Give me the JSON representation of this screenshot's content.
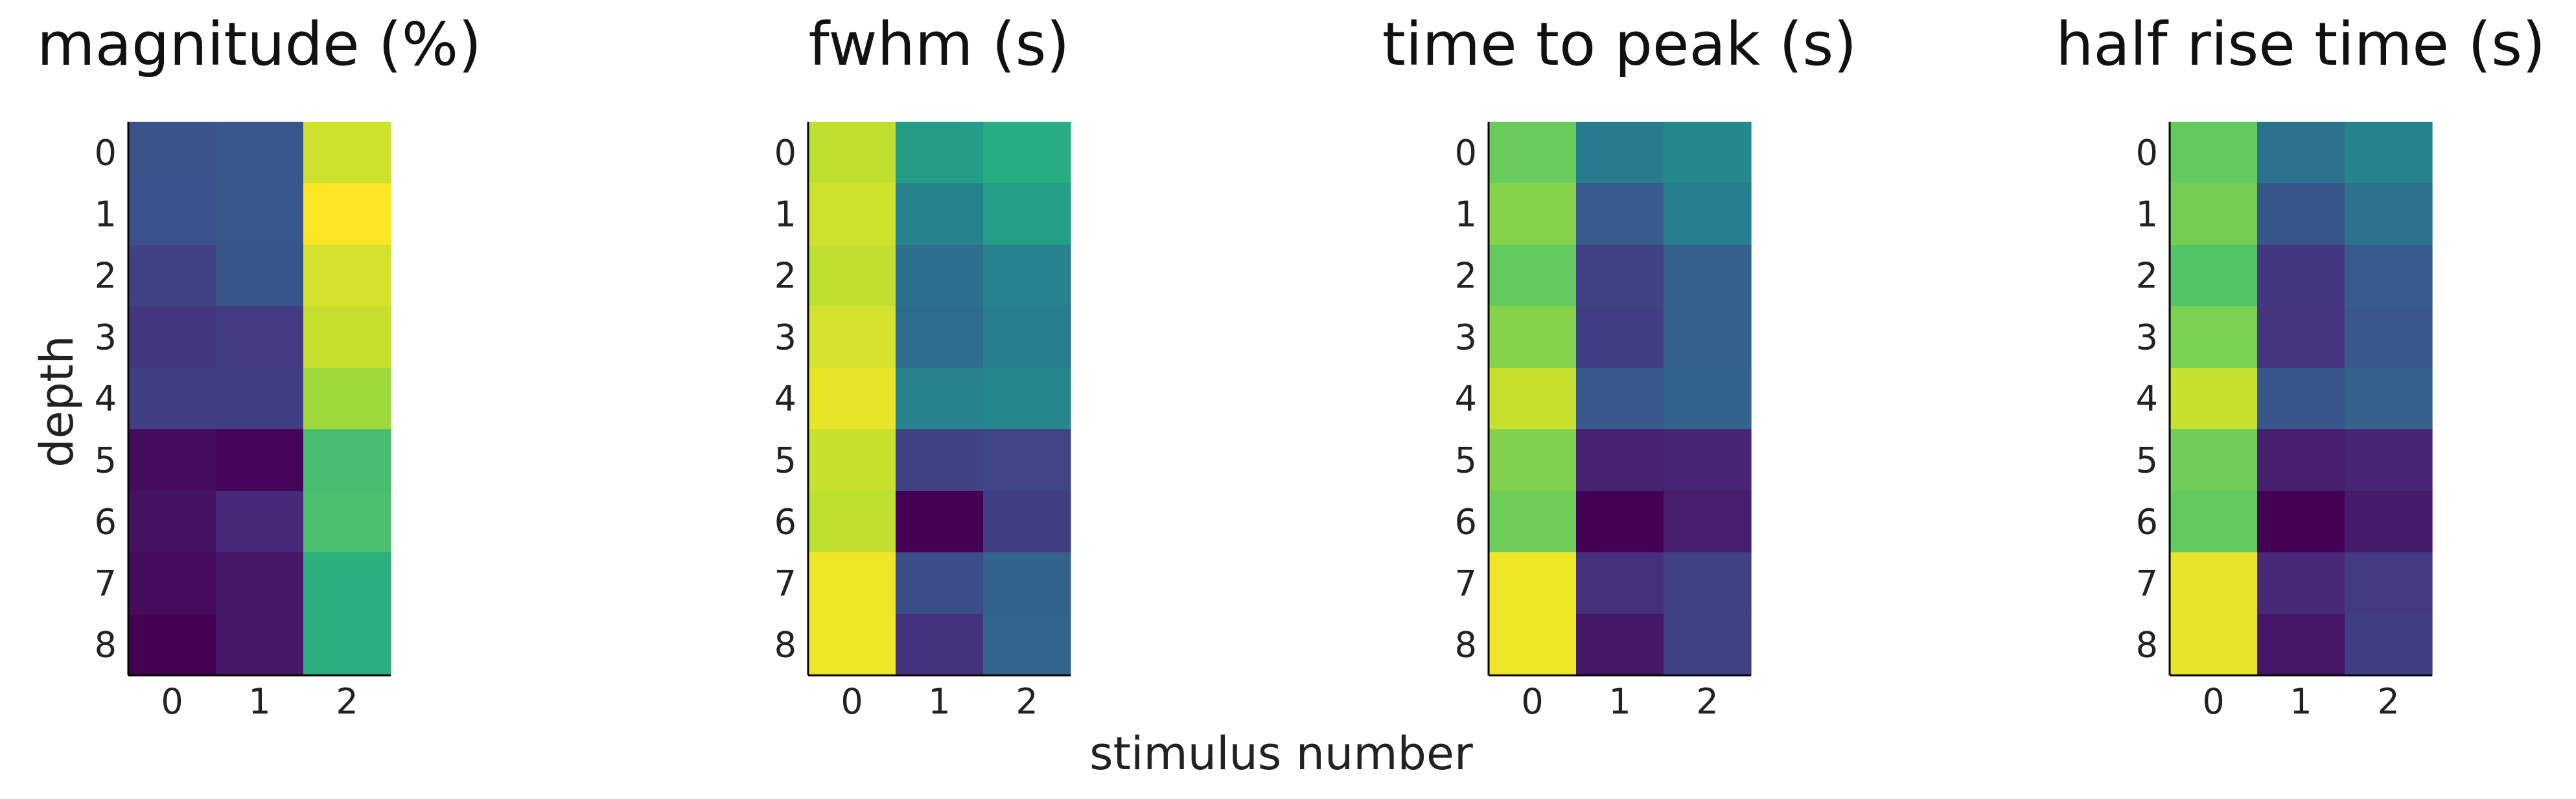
{
  "chart_data": {
    "type": "heatmap",
    "xlabel": "stimulus number",
    "ylabel": "depth",
    "colormap": "viridis",
    "x_ticks": [
      "0",
      "1",
      "2"
    ],
    "y_ticks": [
      "0",
      "1",
      "2",
      "3",
      "4",
      "5",
      "6",
      "7",
      "8"
    ],
    "panels": [
      {
        "title": "magnitude (%)",
        "values": [
          [
            0.26,
            0.28,
            0.93
          ],
          [
            0.25,
            0.28,
            1.0
          ],
          [
            0.2,
            0.27,
            0.94
          ],
          [
            0.17,
            0.18,
            0.92
          ],
          [
            0.19,
            0.19,
            0.86
          ],
          [
            0.03,
            0.01,
            0.7
          ],
          [
            0.05,
            0.12,
            0.71
          ],
          [
            0.03,
            0.07,
            0.64
          ],
          [
            0.0,
            0.07,
            0.64
          ]
        ]
      },
      {
        "title": "fwhm (s)",
        "values": [
          [
            0.91,
            0.56,
            0.63
          ],
          [
            0.93,
            0.45,
            0.57
          ],
          [
            0.91,
            0.37,
            0.44
          ],
          [
            0.94,
            0.36,
            0.43
          ],
          [
            0.97,
            0.45,
            0.46
          ],
          [
            0.92,
            0.2,
            0.21
          ],
          [
            0.91,
            0.0,
            0.19
          ],
          [
            0.98,
            0.24,
            0.32
          ],
          [
            0.98,
            0.15,
            0.33
          ]
        ]
      },
      {
        "title": "time to peak (s)",
        "values": [
          [
            0.77,
            0.42,
            0.47
          ],
          [
            0.82,
            0.29,
            0.43
          ],
          [
            0.76,
            0.2,
            0.31
          ],
          [
            0.82,
            0.19,
            0.31
          ],
          [
            0.92,
            0.28,
            0.32
          ],
          [
            0.81,
            0.1,
            0.11
          ],
          [
            0.78,
            0.0,
            0.09
          ],
          [
            0.98,
            0.14,
            0.2
          ],
          [
            0.98,
            0.06,
            0.2
          ]
        ]
      },
      {
        "title": "half rise time (s)",
        "values": [
          [
            0.76,
            0.38,
            0.45
          ],
          [
            0.79,
            0.27,
            0.38
          ],
          [
            0.73,
            0.17,
            0.29
          ],
          [
            0.8,
            0.16,
            0.28
          ],
          [
            0.92,
            0.27,
            0.31
          ],
          [
            0.78,
            0.09,
            0.11
          ],
          [
            0.76,
            0.0,
            0.08
          ],
          [
            0.97,
            0.12,
            0.18
          ],
          [
            0.97,
            0.06,
            0.19
          ]
        ]
      }
    ]
  }
}
